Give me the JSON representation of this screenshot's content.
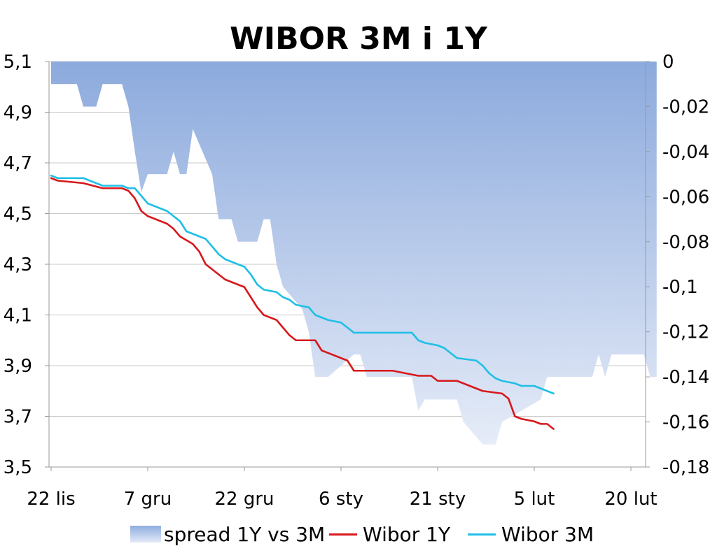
{
  "chart_data": {
    "type": "line",
    "title": "WIBOR 3M i 1Y",
    "x_tick_labels": [
      "22 lis",
      "7 gru",
      "22 gru",
      "6 sty",
      "21 sty",
      "5 lut",
      "20 lut"
    ],
    "x_tick_day_index": [
      0,
      15,
      30,
      45,
      60,
      75,
      90
    ],
    "y_left": {
      "min": 3.5,
      "max": 5.1,
      "tick_labels": [
        "3,5",
        "3,7",
        "3,9",
        "4,1",
        "4,3",
        "4,5",
        "4,7",
        "4,9",
        "5,1"
      ]
    },
    "y_right": {
      "min": -0.18,
      "max": 0,
      "tick_labels": [
        "-0,18",
        "-0,16",
        "-0,14",
        "-0,12",
        "-0,1",
        "-0,08",
        "-0,06",
        "-0,04",
        "-0,02",
        "0"
      ]
    },
    "grid": "horizontal",
    "legend_position": "bottom",
    "series": [
      {
        "name": "spread 1Y vs 3M",
        "kind": "area",
        "axis": "right",
        "color": "#8faedf",
        "points": [
          [
            0,
            -0.01
          ],
          [
            4,
            -0.01
          ],
          [
            5,
            -0.02
          ],
          [
            7,
            -0.02
          ],
          [
            8,
            -0.01
          ],
          [
            11,
            -0.01
          ],
          [
            12,
            -0.02
          ],
          [
            13,
            -0.04
          ],
          [
            14,
            -0.058
          ],
          [
            15,
            -0.05
          ],
          [
            18,
            -0.05
          ],
          [
            19,
            -0.04
          ],
          [
            20,
            -0.05
          ],
          [
            21,
            -0.05
          ],
          [
            22,
            -0.03
          ],
          [
            25,
            -0.05
          ],
          [
            26,
            -0.07
          ],
          [
            28,
            -0.07
          ],
          [
            29,
            -0.08
          ],
          [
            32,
            -0.08
          ],
          [
            33,
            -0.07
          ],
          [
            34,
            -0.07
          ],
          [
            35,
            -0.09
          ],
          [
            36,
            -0.1
          ],
          [
            39,
            -0.11
          ],
          [
            40,
            -0.12
          ],
          [
            41,
            -0.14
          ],
          [
            43,
            -0.14
          ],
          [
            47,
            -0.13
          ],
          [
            48,
            -0.13
          ],
          [
            49,
            -0.14
          ],
          [
            56,
            -0.14
          ],
          [
            57,
            -0.155
          ],
          [
            58,
            -0.15
          ],
          [
            63,
            -0.15
          ],
          [
            64,
            -0.16
          ],
          [
            67,
            -0.17
          ],
          [
            69,
            -0.17
          ],
          [
            70,
            -0.16
          ],
          [
            73,
            -0.155
          ],
          [
            76,
            -0.15
          ],
          [
            77,
            -0.14
          ],
          [
            84,
            -0.14
          ],
          [
            85,
            -0.13
          ],
          [
            86,
            -0.14
          ],
          [
            87,
            -0.13
          ],
          [
            92,
            -0.13
          ],
          [
            93,
            -0.14
          ],
          [
            94,
            -0.14
          ]
        ]
      },
      {
        "name": "Wibor 1Y",
        "kind": "line",
        "axis": "left",
        "color": "#d7191c",
        "points": [
          [
            0,
            4.64
          ],
          [
            1,
            4.63
          ],
          [
            5,
            4.62
          ],
          [
            8,
            4.6
          ],
          [
            11,
            4.6
          ],
          [
            12,
            4.59
          ],
          [
            13,
            4.56
          ],
          [
            14,
            4.51
          ],
          [
            15,
            4.49
          ],
          [
            17,
            4.47
          ],
          [
            18,
            4.46
          ],
          [
            19,
            4.44
          ],
          [
            20,
            4.41
          ],
          [
            22,
            4.38
          ],
          [
            23,
            4.35
          ],
          [
            24,
            4.3
          ],
          [
            26,
            4.26
          ],
          [
            27,
            4.24
          ],
          [
            29,
            4.22
          ],
          [
            30,
            4.21
          ],
          [
            31,
            4.17
          ],
          [
            32,
            4.13
          ],
          [
            33,
            4.1
          ],
          [
            35,
            4.08
          ],
          [
            36,
            4.05
          ],
          [
            37,
            4.02
          ],
          [
            38,
            4.0
          ],
          [
            41,
            4.0
          ],
          [
            42,
            3.96
          ],
          [
            44,
            3.94
          ],
          [
            45,
            3.93
          ],
          [
            46,
            3.92
          ],
          [
            47,
            3.88
          ],
          [
            48,
            3.88
          ],
          [
            53,
            3.88
          ],
          [
            55,
            3.87
          ],
          [
            57,
            3.86
          ],
          [
            59,
            3.86
          ],
          [
            60,
            3.84
          ],
          [
            63,
            3.84
          ],
          [
            65,
            3.82
          ],
          [
            67,
            3.8
          ],
          [
            70,
            3.79
          ],
          [
            71,
            3.77
          ],
          [
            72,
            3.7
          ],
          [
            73,
            3.69
          ],
          [
            75,
            3.68
          ],
          [
            76,
            3.67
          ],
          [
            77,
            3.67
          ],
          [
            78,
            3.65
          ]
        ]
      },
      {
        "name": "Wibor 3M",
        "kind": "line",
        "axis": "left",
        "color": "#1fbfe6",
        "points": [
          [
            0,
            4.65
          ],
          [
            1,
            4.64
          ],
          [
            5,
            4.64
          ],
          [
            6,
            4.63
          ],
          [
            8,
            4.61
          ],
          [
            11,
            4.61
          ],
          [
            12,
            4.6
          ],
          [
            13,
            4.6
          ],
          [
            14,
            4.57
          ],
          [
            15,
            4.54
          ],
          [
            17,
            4.52
          ],
          [
            18,
            4.51
          ],
          [
            19,
            4.49
          ],
          [
            20,
            4.47
          ],
          [
            21,
            4.43
          ],
          [
            22,
            4.42
          ],
          [
            24,
            4.4
          ],
          [
            25,
            4.37
          ],
          [
            26,
            4.34
          ],
          [
            27,
            4.32
          ],
          [
            29,
            4.3
          ],
          [
            30,
            4.29
          ],
          [
            31,
            4.26
          ],
          [
            32,
            4.22
          ],
          [
            33,
            4.2
          ],
          [
            35,
            4.19
          ],
          [
            36,
            4.17
          ],
          [
            37,
            4.16
          ],
          [
            38,
            4.14
          ],
          [
            40,
            4.13
          ],
          [
            41,
            4.1
          ],
          [
            42,
            4.09
          ],
          [
            43,
            4.08
          ],
          [
            45,
            4.07
          ],
          [
            46,
            4.05
          ],
          [
            47,
            4.03
          ],
          [
            56,
            4.03
          ],
          [
            57,
            4.0
          ],
          [
            58,
            3.99
          ],
          [
            60,
            3.98
          ],
          [
            61,
            3.97
          ],
          [
            62,
            3.95
          ],
          [
            63,
            3.93
          ],
          [
            66,
            3.92
          ],
          [
            67,
            3.9
          ],
          [
            68,
            3.87
          ],
          [
            69,
            3.85
          ],
          [
            70,
            3.84
          ],
          [
            72,
            3.83
          ],
          [
            73,
            3.82
          ],
          [
            75,
            3.82
          ],
          [
            76,
            3.81
          ],
          [
            78,
            3.79
          ]
        ]
      }
    ]
  }
}
